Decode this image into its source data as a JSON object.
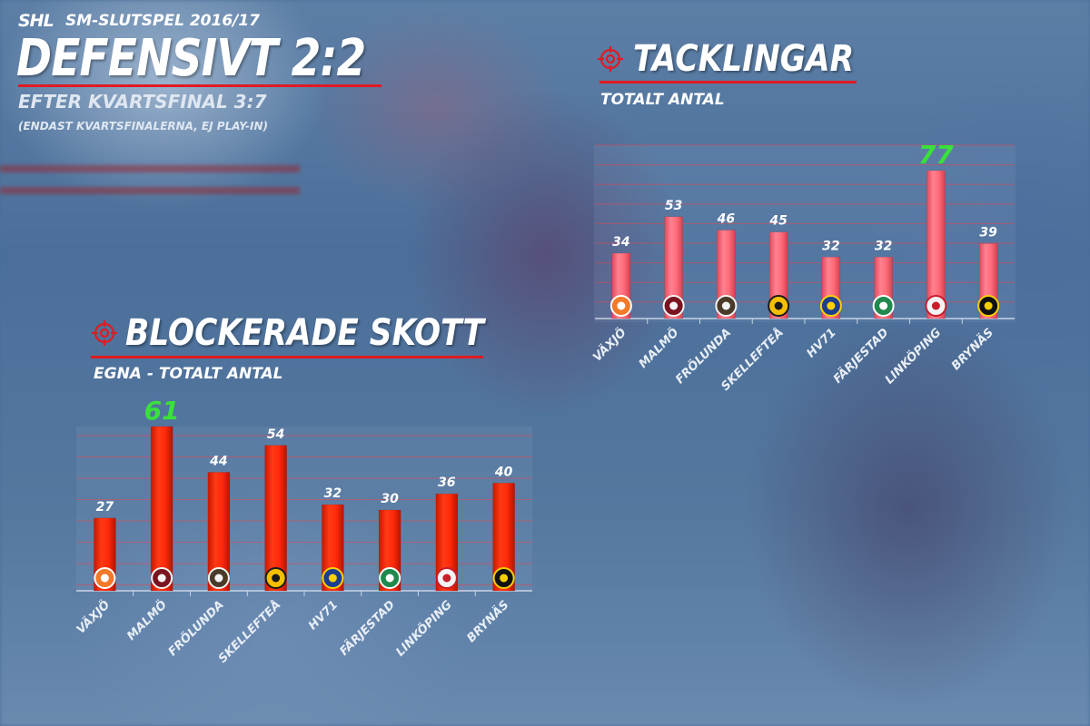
{
  "header": {
    "league_logo_text": "SHL",
    "season": "SM-SLUTSPEL 2016/17",
    "title": "DEFENSIVT 2:2",
    "subtitle": "EFTER KVARTSFINAL 3:7",
    "note": "(ENDAST KVARTSFINALERNA, EJ PLAY-IN)"
  },
  "colors": {
    "accent_red": "#e01b22",
    "bar_red": "#ff2a0a",
    "bar_pink": "#ff6b7a",
    "highlight_green": "#39e13a"
  },
  "sections": {
    "blockerade": {
      "title": "BLOCKERADE SKOTT",
      "subtitle": "EGNA - TOTALT ANTAL",
      "icon": "target-icon"
    },
    "tacklingar": {
      "title": "TACKLINGAR",
      "subtitle": "TOTALT ANTAL",
      "icon": "target-icon"
    }
  },
  "chart_data": [
    {
      "type": "bar",
      "title": "BLOCKERADE SKOTT",
      "subtitle": "EGNA - TOTALT ANTAL",
      "categories": [
        "VÄXJÖ",
        "MALMÖ",
        "FRÖLUNDA",
        "SKELLEFTEÅ",
        "HV71",
        "FÄRJESTAD",
        "LINKÖPING",
        "BRYNÄS"
      ],
      "values": [
        27,
        61,
        44,
        54,
        32,
        30,
        36,
        40
      ],
      "highlight_max": true,
      "team_logo_icons": [
        "vaxjo-lakers-logo-icon",
        "malmo-redhawks-logo-icon",
        "frolunda-logo-icon",
        "skelleftea-logo-icon",
        "hv71-logo-icon",
        "farjestad-logo-icon",
        "linkoping-logo-icon",
        "brynas-logo-icon"
      ],
      "grid": true
    },
    {
      "type": "bar",
      "title": "TACKLINGAR",
      "subtitle": "TOTALT ANTAL",
      "categories": [
        "VÄXJÖ",
        "MALMÖ",
        "FRÖLUNDA",
        "SKELLEFTEÅ",
        "HV71",
        "FÄRJESTAD",
        "LINKÖPING",
        "BRYNÄS"
      ],
      "values": [
        34,
        53,
        46,
        45,
        32,
        32,
        77,
        39
      ],
      "highlight_max": true,
      "team_logo_icons": [
        "vaxjo-lakers-logo-icon",
        "malmo-redhawks-logo-icon",
        "frolunda-logo-icon",
        "skelleftea-logo-icon",
        "hv71-logo-icon",
        "farjestad-logo-icon",
        "linkoping-logo-icon",
        "brynas-logo-icon"
      ],
      "grid": true
    }
  ]
}
